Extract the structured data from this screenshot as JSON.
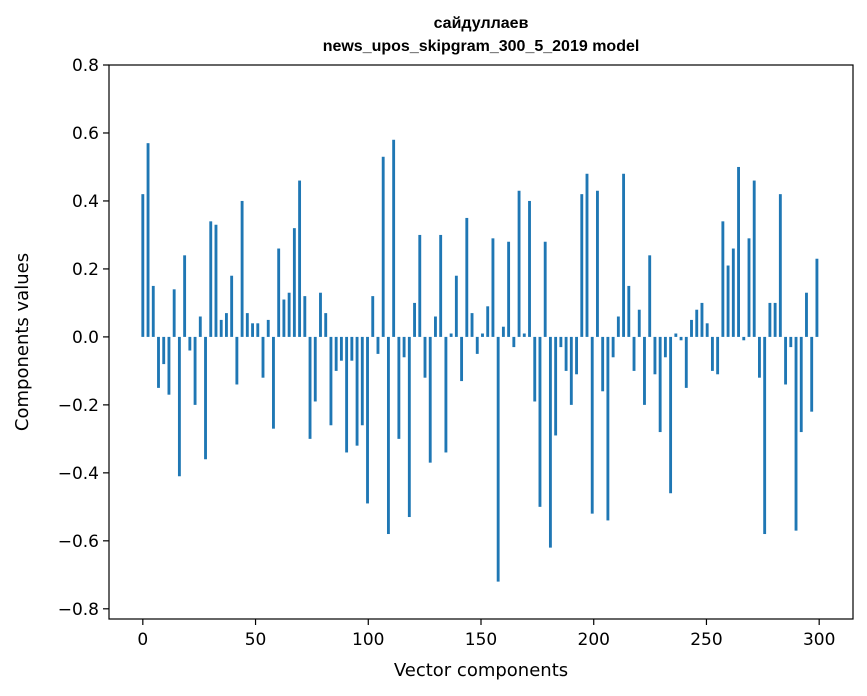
{
  "chart_data": {
    "type": "bar",
    "title": "сайдуллаев",
    "subtitle": "news_upos_skipgram_300_5_2019 model",
    "xlabel": "Vector components",
    "ylabel": "Components values",
    "xlim": [
      -15,
      315
    ],
    "ylim": [
      -0.83,
      0.8
    ],
    "x_ticks": [
      0,
      50,
      100,
      150,
      200,
      250,
      300
    ],
    "x_tick_labels": [
      "0",
      "50",
      "100",
      "150",
      "200",
      "250",
      "300"
    ],
    "y_ticks": [
      -0.8,
      -0.6,
      -0.4,
      -0.2,
      0.0,
      0.2,
      0.4,
      0.6,
      0.8
    ],
    "y_tick_labels": [
      "−0.8",
      "−0.6",
      "−0.4",
      "−0.2",
      "0.0",
      "0.2",
      "0.4",
      "0.6",
      "0.8"
    ],
    "bar_color": "#1f77b4",
    "grid": false,
    "values": [
      0.42,
      0.57,
      0.15,
      -0.15,
      -0.08,
      -0.17,
      0.14,
      -0.41,
      0.24,
      -0.04,
      -0.2,
      0.06,
      -0.36,
      0.34,
      0.33,
      0.05,
      0.07,
      0.18,
      -0.14,
      0.4,
      0.07,
      0.04,
      0.04,
      -0.12,
      0.05,
      -0.27,
      0.26,
      0.11,
      0.13,
      0.32,
      0.46,
      0.12,
      -0.3,
      -0.19,
      0.13,
      0.07,
      -0.26,
      -0.1,
      -0.07,
      -0.34,
      -0.07,
      -0.32,
      -0.26,
      -0.49,
      0.12,
      -0.05,
      0.53,
      -0.58,
      0.58,
      -0.3,
      -0.06,
      -0.53,
      0.1,
      0.3,
      -0.12,
      -0.37,
      0.06,
      0.3,
      -0.34,
      0.01,
      0.18,
      -0.13,
      0.35,
      0.07,
      -0.05,
      0.01,
      0.09,
      0.29,
      -0.72,
      0.03,
      0.28,
      -0.03,
      0.43,
      0.01,
      0.4,
      -0.19,
      -0.5,
      0.28,
      -0.62,
      -0.29,
      -0.03,
      -0.1,
      -0.2,
      -0.11,
      0.42,
      0.48,
      -0.52,
      0.43,
      -0.16,
      -0.54,
      -0.06,
      0.06,
      0.48,
      0.15,
      -0.1,
      0.08,
      -0.2,
      0.24,
      -0.11,
      -0.28,
      -0.06,
      -0.46,
      0.01,
      -0.01,
      -0.15,
      0.05,
      0.08,
      0.1,
      0.04,
      -0.1,
      -0.11,
      0.34,
      0.21,
      0.26,
      0.5,
      -0.01,
      0.29,
      0.46,
      -0.12,
      -0.58,
      0.1,
      0.1,
      0.42,
      -0.14,
      -0.03,
      -0.57,
      -0.28,
      0.13,
      -0.22,
      0.23
    ]
  }
}
